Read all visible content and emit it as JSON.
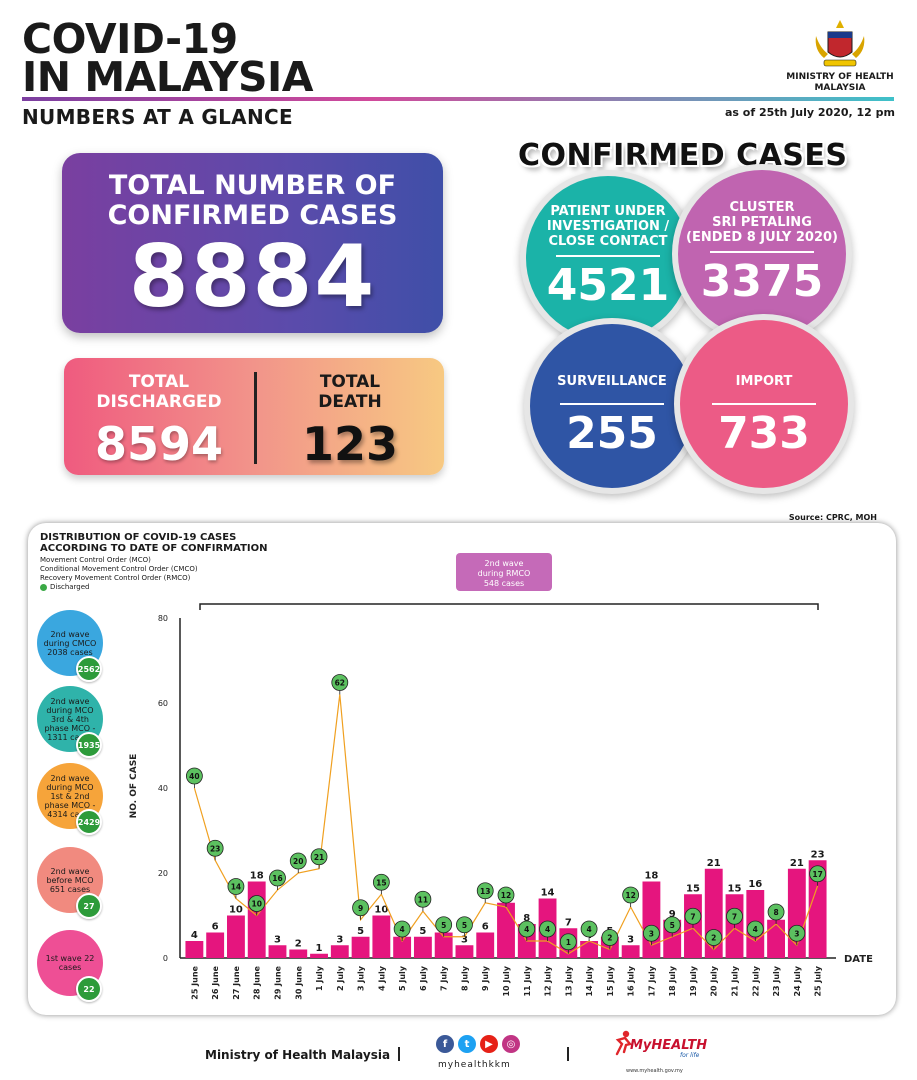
{
  "header": {
    "title_line1": "COVID-19",
    "title_line2": "IN MALAYSIA",
    "subtitle": "NUMBERS AT A GLANCE",
    "as_of": "as of 25th July 2020, 12 pm",
    "ministry_line1": "MINISTRY OF HEALTH",
    "ministry_line2": "MALAYSIA"
  },
  "totals": {
    "confirmed_label_1": "TOTAL NUMBER OF",
    "confirmed_label_2": "CONFIRMED CASES",
    "confirmed_value": "8884",
    "discharged_label_1": "TOTAL",
    "discharged_label_2": "DISCHARGED",
    "discharged_value": "8594",
    "death_label_1": "TOTAL",
    "death_label_2": "DEATH",
    "death_value": "123"
  },
  "confirmed_cases": {
    "title": "CONFIRMED CASES",
    "pui": {
      "label_1": "PATIENT UNDER",
      "label_2": "INVESTIGATION /",
      "label_3": "CLOSE CONTACT",
      "value": "4521",
      "color": "#1bb3a8"
    },
    "cluster": {
      "label_1": "CLUSTER",
      "label_2": "SRI PETALING",
      "label_3": "(ENDED 8 JULY 2020)",
      "value": "3375",
      "color": "#c064b0"
    },
    "surveillance": {
      "label": "SURVEILLANCE",
      "value": "255",
      "color": "#2f55a5"
    },
    "import": {
      "label": "IMPORT",
      "value": "733",
      "color": "#ec5b86"
    }
  },
  "source": "Source: CPRC, MOH",
  "chart_panel": {
    "title_1": "DISTRIBUTION OF COVID-19 CASES",
    "title_2": "ACCORDING TO DATE OF CONFIRMATION",
    "legend": [
      "Movement Control Order (MCO)",
      "Conditional Movement Control Order (CMCO)",
      "Recovery Movement Control Order (RMCO)",
      "Discharged"
    ],
    "rmco_tag_1": "2nd wave",
    "rmco_tag_2": "during RMCO",
    "rmco_tag_3": "548 cases",
    "waves": [
      {
        "l1": "2nd wave",
        "l2": "during CMCO",
        "l3": "2038 cases",
        "l4": "",
        "badge": "2562",
        "color": "#3aa7df"
      },
      {
        "l1": "2nd wave",
        "l2": "during MCO",
        "l3": "3rd & 4th",
        "l4": "phase MCO - 1311 cases",
        "badge": "1935",
        "color": "#2fb3aa"
      },
      {
        "l1": "2nd wave",
        "l2": "during MCO",
        "l3": "1st & 2nd",
        "l4": "phase MCO - 4314 cases",
        "badge": "2429",
        "color": "#f6a43a"
      },
      {
        "l1": "2nd wave",
        "l2": "before MCO",
        "l3": "651 cases",
        "l4": "",
        "badge": "27",
        "color": "#f18a7f"
      },
      {
        "l1": "1st wave",
        "l2": "22 cases",
        "l3": "",
        "l4": "",
        "badge": "22",
        "color": "#ee4f95"
      }
    ]
  },
  "chart_data": {
    "type": "bar",
    "ylabel": "NO. OF CASE",
    "xlabel": "DATE",
    "ylim": [
      0,
      80
    ],
    "yticks": [
      0,
      20,
      40,
      60,
      80
    ],
    "categories": [
      "25 June",
      "26 June",
      "27 June",
      "28 June",
      "29 June",
      "30 June",
      "1 July",
      "2 July",
      "3 July",
      "4 July",
      "5 July",
      "6 July",
      "7 July",
      "8 July",
      "9 July",
      "10 July",
      "11 July",
      "12 July",
      "13 July",
      "14 July",
      "15 July",
      "16 July",
      "17 July",
      "18 July",
      "19 July",
      "20 July",
      "21 July",
      "22 July",
      "23 July",
      "24 July",
      "25 July"
    ],
    "series": [
      {
        "values": [
          4,
          6,
          10,
          18,
          3,
          2,
          1,
          3,
          5,
          10,
          5,
          5,
          6,
          3,
          6,
          13,
          8,
          14,
          7,
          4,
          5,
          3,
          18,
          9,
          15,
          21,
          15,
          16,
          9,
          21,
          23
        ],
        "color": "#e5157e"
      },
      {
        "name": "Discharged",
        "values": [
          40,
          23,
          14,
          10,
          16,
          20,
          21,
          62,
          9,
          15,
          4,
          11,
          5,
          5,
          13,
          12,
          4,
          4,
          1,
          4,
          2,
          12,
          3,
          5,
          7,
          2,
          7,
          4,
          8,
          3,
          17
        ],
        "color": "#3aa945"
      }
    ],
    "bar_labels": [
      "4",
      "6",
      "10",
      "18",
      "3",
      "2",
      "1",
      "3",
      "5",
      "10",
      "5",
      "5",
      "6",
      "3",
      "6",
      "13",
      "8",
      "14",
      "7",
      "4",
      "5",
      "3",
      "18",
      "9",
      "15",
      "21",
      "15",
      "16",
      "9",
      "21",
      "23"
    ],
    "grid": false
  },
  "footer": {
    "ministry": "Ministry of Health Malaysia",
    "handle": "myhealthkkm",
    "brand": "MyHEALTH",
    "brand_tagline": "for life",
    "brand_url": "www.myhealth.gov.my"
  }
}
